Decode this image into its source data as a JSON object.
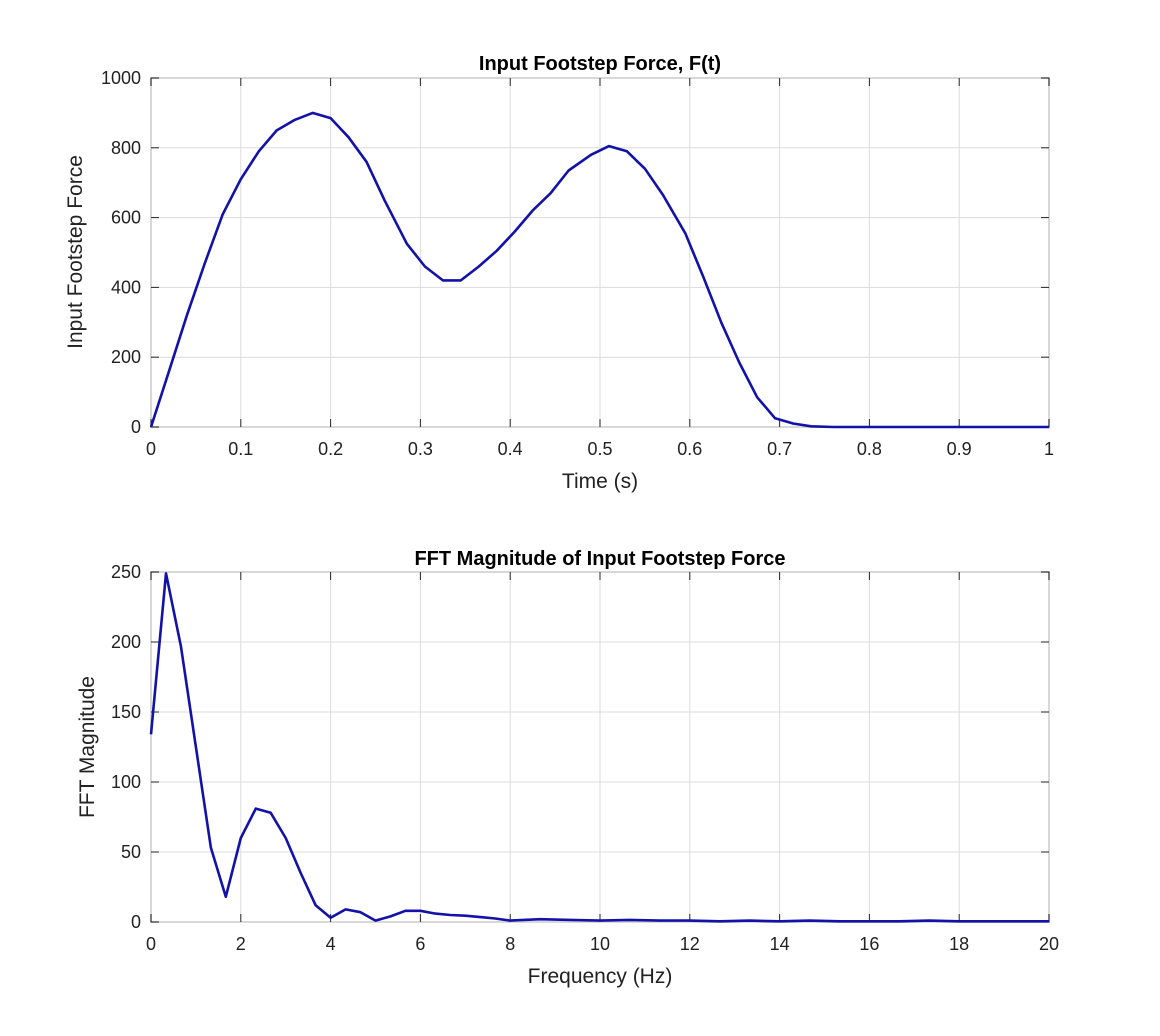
{
  "colors": {
    "line": "#1212a8",
    "grid": "#dcdcdc",
    "axis": "#262626"
  },
  "chart_data": [
    {
      "type": "line",
      "title": "Input Footstep Force, F(t)",
      "xlabel": "Time (s)",
      "ylabel": "Input Footstep Force",
      "xlim": [
        0,
        1
      ],
      "ylim": [
        0,
        1000
      ],
      "xticks": [
        0,
        0.1,
        0.2,
        0.3,
        0.4,
        0.5,
        0.6,
        0.7,
        0.8,
        0.9,
        1
      ],
      "xtick_labels": [
        "0",
        "0.1",
        "0.2",
        "0.3",
        "0.4",
        "0.5",
        "0.6",
        "0.7",
        "0.8",
        "0.9",
        "1"
      ],
      "yticks": [
        0,
        200,
        400,
        600,
        800,
        1000
      ],
      "ytick_labels": [
        "0",
        "200",
        "400",
        "600",
        "800",
        "1000"
      ],
      "grid": true,
      "series": [
        {
          "x": [
            0,
            0.02,
            0.04,
            0.06,
            0.08,
            0.1,
            0.12,
            0.14,
            0.16,
            0.18,
            0.2,
            0.22,
            0.24,
            0.26,
            0.285,
            0.305,
            0.325,
            0.345,
            0.365,
            0.385,
            0.405,
            0.425,
            0.445,
            0.465,
            0.49,
            0.51,
            0.53,
            0.55,
            0.57,
            0.595,
            0.615,
            0.635,
            0.655,
            0.675,
            0.695,
            0.715,
            0.735,
            0.76,
            0.8,
            1.0
          ],
          "y": [
            0,
            160,
            320,
            470,
            610,
            710,
            790,
            850,
            880,
            900,
            885,
            830,
            760,
            650,
            525,
            460,
            420,
            420,
            460,
            505,
            560,
            620,
            670,
            735,
            780,
            805,
            790,
            740,
            665,
            555,
            430,
            300,
            185,
            85,
            25,
            10,
            2,
            0,
            0,
            0
          ]
        }
      ]
    },
    {
      "type": "line",
      "title": "FFT Magnitude of Input Footstep Force",
      "xlabel": "Frequency (Hz)",
      "ylabel": "FFT Magnitude",
      "xlim": [
        0,
        20
      ],
      "ylim": [
        0,
        250
      ],
      "xticks": [
        0,
        2,
        4,
        6,
        8,
        10,
        12,
        14,
        16,
        18,
        20
      ],
      "xtick_labels": [
        "0",
        "2",
        "4",
        "6",
        "8",
        "10",
        "12",
        "14",
        "16",
        "18",
        "20"
      ],
      "yticks": [
        0,
        50,
        100,
        150,
        200,
        250
      ],
      "ytick_labels": [
        "0",
        "50",
        "100",
        "150",
        "200",
        "250"
      ],
      "grid": true,
      "series": [
        {
          "x": [
            0,
            0.333,
            0.667,
            1.0,
            1.333,
            1.667,
            2.0,
            2.333,
            2.667,
            3.0,
            3.333,
            3.667,
            4.0,
            4.333,
            4.667,
            5.0,
            5.333,
            5.667,
            6.0,
            6.333,
            6.667,
            7.0,
            7.333,
            7.667,
            8.0,
            8.667,
            9.333,
            10.0,
            10.667,
            11.333,
            12.0,
            12.667,
            13.333,
            14.0,
            14.667,
            15.333,
            16.0,
            16.667,
            17.333,
            18.0,
            18.667,
            19.333,
            20.0
          ],
          "y": [
            134,
            249,
            197,
            125,
            53,
            18,
            60,
            81,
            78,
            60,
            35,
            12,
            3,
            9,
            7,
            1,
            4,
            8,
            8,
            6,
            5,
            4.5,
            3.5,
            2.5,
            1,
            2,
            1.5,
            1,
            1.5,
            1,
            1,
            0.5,
            1,
            0.5,
            1,
            0.5,
            0.5,
            0.5,
            1,
            0.5,
            0.5,
            0.5,
            0.5
          ]
        }
      ]
    }
  ]
}
